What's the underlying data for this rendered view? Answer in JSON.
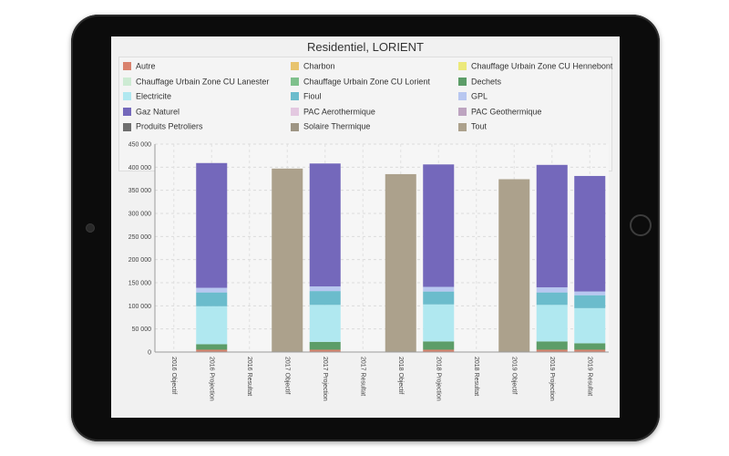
{
  "chart_data": {
    "type": "bar",
    "stacked": true,
    "title": "Residentiel, LORIENT",
    "xlabel": "",
    "ylabel": "",
    "ylim": [
      0,
      450000
    ],
    "yticks": [
      0,
      50000,
      100000,
      150000,
      200000,
      250000,
      300000,
      350000,
      400000,
      450000
    ],
    "ytick_labels": [
      "0",
      "50 000",
      "100 000",
      "150 000",
      "200 000",
      "250 000",
      "300 000",
      "350 000",
      "400 000",
      "450 000"
    ],
    "grid": true,
    "legend_position": "top",
    "categories": [
      "2016 Objectif",
      "2016 Projection",
      "2016 Resultat",
      "2017 Objectif",
      "2017 Projection",
      "2017 Resultat",
      "2018 Objectif",
      "2018 Projection",
      "2018 Resultat",
      "2019 Objectif",
      "2019 Projection",
      "2019 Resultat"
    ],
    "series": [
      {
        "name": "Autre",
        "color": "#d9826e",
        "values": [
          0,
          5000,
          0,
          0,
          5000,
          0,
          0,
          5000,
          0,
          0,
          5000,
          5000
        ]
      },
      {
        "name": "Charbon",
        "color": "#e8c46e",
        "values": [
          0,
          0,
          0,
          0,
          0,
          0,
          0,
          0,
          0,
          0,
          0,
          0
        ]
      },
      {
        "name": "Chauffage Urbain Zone CU Hennebont",
        "color": "#ece97a",
        "values": [
          0,
          0,
          0,
          0,
          0,
          0,
          0,
          0,
          0,
          0,
          0,
          0
        ]
      },
      {
        "name": "Chauffage Urbain Zone CU Lanester",
        "color": "#cdebd3",
        "values": [
          0,
          0,
          0,
          0,
          0,
          0,
          0,
          0,
          0,
          0,
          0,
          0
        ]
      },
      {
        "name": "Chauffage Urbain Zone CU Lorient",
        "color": "#7fc08c",
        "values": [
          0,
          0,
          0,
          0,
          0,
          0,
          0,
          0,
          0,
          0,
          0,
          0
        ]
      },
      {
        "name": "Dechets",
        "color": "#5c9d68",
        "values": [
          0,
          12000,
          0,
          0,
          17000,
          0,
          0,
          18000,
          0,
          0,
          18000,
          14000
        ]
      },
      {
        "name": "Electricite",
        "color": "#b0e8f0",
        "values": [
          0,
          82000,
          0,
          0,
          80000,
          0,
          0,
          80000,
          0,
          0,
          79000,
          76000
        ]
      },
      {
        "name": "Fioul",
        "color": "#6bbccc",
        "values": [
          0,
          30000,
          0,
          0,
          30000,
          0,
          0,
          28000,
          0,
          0,
          27000,
          28000
        ]
      },
      {
        "name": "GPL",
        "color": "#b8c7f0",
        "values": [
          0,
          10000,
          0,
          0,
          10000,
          0,
          0,
          10000,
          0,
          0,
          11000,
          8000
        ]
      },
      {
        "name": "Gaz Naturel",
        "color": "#7468bb",
        "values": [
          0,
          270000,
          0,
          0,
          266000,
          0,
          0,
          265000,
          0,
          0,
          265000,
          250000
        ]
      },
      {
        "name": "PAC Aerothermique",
        "color": "#e3c8e0",
        "values": [
          0,
          0,
          0,
          0,
          0,
          0,
          0,
          0,
          0,
          0,
          0,
          0
        ]
      },
      {
        "name": "PAC Geothermique",
        "color": "#bda4c0",
        "values": [
          0,
          0,
          0,
          0,
          0,
          0,
          0,
          0,
          0,
          0,
          0,
          0
        ]
      },
      {
        "name": "Produits Petroliers",
        "color": "#6e6e6e",
        "values": [
          0,
          0,
          0,
          0,
          0,
          0,
          0,
          0,
          0,
          0,
          0,
          0
        ]
      },
      {
        "name": "Solaire Thermique",
        "color": "#9e9584",
        "values": [
          0,
          0,
          0,
          0,
          0,
          0,
          0,
          0,
          0,
          0,
          0,
          0
        ]
      },
      {
        "name": "Tout",
        "color": "#aca18c",
        "values": [
          0,
          0,
          0,
          397000,
          0,
          0,
          385000,
          0,
          0,
          374000,
          0,
          0
        ]
      }
    ]
  }
}
